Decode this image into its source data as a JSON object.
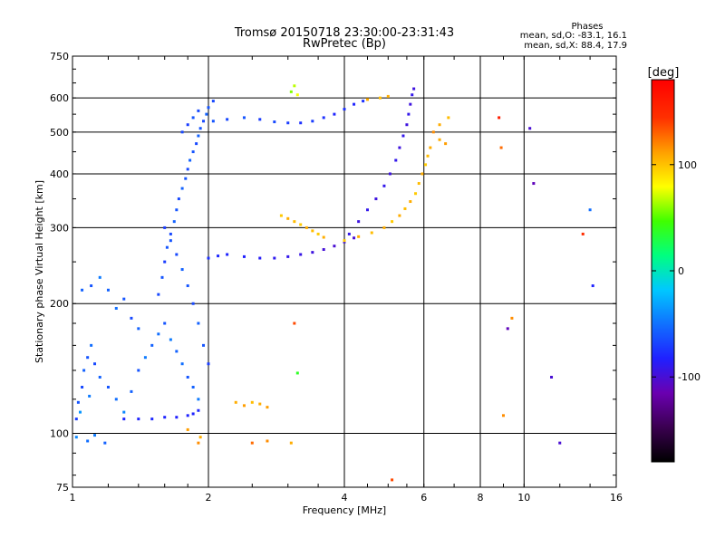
{
  "header": {
    "title_line1": "Tromsø 20150718 23:30:00-23:31:43",
    "title_line2": "RwPretec (Bp)"
  },
  "stats": {
    "title": "Phases",
    "line_o": "mean, sd,O: -83.1, 16.1",
    "line_x": "mean, sd,X:  88.4, 17.9"
  },
  "chart_data": {
    "type": "scatter",
    "xlabel": "Frequency [MHz]",
    "ylabel": "Stationary phase Virtual Height [km]",
    "x_scale": "log",
    "y_scale": "log",
    "xlim": [
      1,
      16
    ],
    "ylim": [
      75,
      750
    ],
    "x_ticks": [
      1,
      2,
      4,
      6,
      8,
      10,
      16
    ],
    "x_major_gridlines": [
      2,
      4,
      6,
      8,
      10
    ],
    "y_ticks": [
      75,
      100,
      200,
      300,
      400,
      500,
      600,
      750
    ],
    "y_major_gridlines": [
      100,
      200,
      300,
      400,
      500,
      600
    ],
    "grid": true,
    "colorbar": {
      "label": "[deg]",
      "range": [
        -180,
        180
      ],
      "ticks": [
        100,
        0,
        -100
      ],
      "colormap": [
        "#000000",
        "#3a0050",
        "#6a00b0",
        "#2020ff",
        "#1070ff",
        "#00c8ff",
        "#00ff80",
        "#40ff00",
        "#ffff00",
        "#ffa000",
        "#ff3000",
        "#ff0000"
      ]
    },
    "series": [
      {
        "points": [
          [
            1.02,
            108,
            -70
          ],
          [
            1.03,
            118,
            -60
          ],
          [
            1.05,
            128,
            -65
          ],
          [
            1.06,
            140,
            -55
          ],
          [
            1.08,
            150,
            -60
          ],
          [
            1.1,
            160,
            -50
          ],
          [
            1.12,
            145,
            -65
          ],
          [
            1.15,
            135,
            -55
          ],
          [
            1.2,
            128,
            -60
          ],
          [
            1.25,
            120,
            -50
          ],
          [
            1.3,
            112,
            -40
          ],
          [
            1.35,
            125,
            -55
          ],
          [
            1.4,
            140,
            -60
          ],
          [
            1.45,
            150,
            -45
          ],
          [
            1.5,
            160,
            -55
          ],
          [
            1.55,
            170,
            -50
          ],
          [
            1.6,
            180,
            -60
          ],
          [
            1.65,
            165,
            -45
          ],
          [
            1.7,
            155,
            -55
          ],
          [
            1.75,
            145,
            -50
          ],
          [
            1.8,
            135,
            -60
          ],
          [
            1.85,
            128,
            -55
          ],
          [
            1.9,
            120,
            -45
          ],
          [
            1.05,
            215,
            -55
          ],
          [
            1.1,
            220,
            -60
          ],
          [
            1.15,
            230,
            -45
          ],
          [
            1.2,
            215,
            -55
          ],
          [
            1.3,
            205,
            -60
          ],
          [
            1.25,
            195,
            -50
          ],
          [
            1.35,
            185,
            -65
          ],
          [
            1.4,
            175,
            -55
          ],
          [
            1.02,
            98,
            -40
          ],
          [
            1.08,
            96,
            -50
          ],
          [
            1.12,
            99,
            -45
          ],
          [
            1.18,
            95,
            -55
          ],
          [
            1.04,
            112,
            -35
          ],
          [
            1.09,
            122,
            -45
          ]
        ]
      },
      {
        "points": [
          [
            1.3,
            108,
            -80
          ],
          [
            1.4,
            108,
            -80
          ],
          [
            1.5,
            108,
            -78
          ],
          [
            1.6,
            109,
            -80
          ],
          [
            1.7,
            109,
            -82
          ],
          [
            1.8,
            110,
            -80
          ],
          [
            1.85,
            111,
            -80
          ],
          [
            1.9,
            113,
            -78
          ]
        ]
      },
      {
        "points": [
          [
            1.55,
            210,
            -65
          ],
          [
            1.58,
            230,
            -60
          ],
          [
            1.6,
            250,
            -70
          ],
          [
            1.62,
            270,
            -60
          ],
          [
            1.65,
            290,
            -65
          ],
          [
            1.68,
            310,
            -55
          ],
          [
            1.7,
            330,
            -60
          ],
          [
            1.72,
            350,
            -65
          ],
          [
            1.75,
            370,
            -55
          ],
          [
            1.78,
            390,
            -60
          ],
          [
            1.8,
            410,
            -65
          ],
          [
            1.82,
            430,
            -55
          ],
          [
            1.85,
            450,
            -60
          ],
          [
            1.88,
            470,
            -65
          ],
          [
            1.9,
            490,
            -55
          ],
          [
            1.92,
            510,
            -60
          ],
          [
            1.95,
            530,
            -65
          ],
          [
            1.98,
            550,
            -55
          ],
          [
            2.0,
            570,
            -60
          ],
          [
            2.05,
            590,
            -65
          ],
          [
            1.6,
            300,
            -70
          ],
          [
            1.65,
            280,
            -60
          ],
          [
            1.7,
            260,
            -65
          ],
          [
            1.75,
            240,
            -55
          ],
          [
            1.8,
            220,
            -60
          ],
          [
            1.85,
            200,
            -65
          ],
          [
            1.9,
            180,
            -55
          ],
          [
            1.95,
            160,
            -60
          ],
          [
            2.0,
            145,
            -70
          ],
          [
            1.75,
            500,
            -65
          ],
          [
            1.8,
            520,
            -70
          ],
          [
            1.85,
            540,
            -60
          ],
          [
            1.9,
            560,
            -65
          ]
        ]
      },
      {
        "points": [
          [
            2.0,
            255,
            -75
          ],
          [
            2.1,
            258,
            -78
          ],
          [
            2.2,
            260,
            -80
          ],
          [
            2.4,
            257,
            -82
          ],
          [
            2.6,
            255,
            -85
          ],
          [
            2.8,
            255,
            -88
          ],
          [
            3.0,
            257,
            -90
          ],
          [
            3.2,
            260,
            -92
          ],
          [
            3.4,
            263,
            -95
          ],
          [
            3.6,
            267,
            -98
          ],
          [
            3.8,
            272,
            -100
          ],
          [
            4.0,
            278,
            -95
          ],
          [
            4.2,
            284,
            -100
          ]
        ]
      },
      {
        "points": [
          [
            4.0,
            280,
            100
          ],
          [
            4.3,
            286,
            110
          ],
          [
            4.6,
            292,
            105
          ],
          [
            4.9,
            300,
            110
          ],
          [
            5.1,
            310,
            100
          ],
          [
            5.3,
            320,
            110
          ],
          [
            5.45,
            332,
            105
          ],
          [
            5.6,
            345,
            110
          ],
          [
            5.75,
            360,
            100
          ],
          [
            5.85,
            380,
            105
          ],
          [
            5.95,
            400,
            110
          ],
          [
            6.05,
            420,
            100
          ],
          [
            6.12,
            440,
            105
          ],
          [
            6.2,
            460,
            110
          ],
          [
            2.9,
            320,
            100
          ],
          [
            3.0,
            315,
            110
          ],
          [
            3.1,
            310,
            105
          ],
          [
            3.2,
            305,
            100
          ],
          [
            3.3,
            300,
            110
          ],
          [
            3.4,
            295,
            105
          ],
          [
            3.5,
            290,
            100
          ],
          [
            3.6,
            285,
            110
          ]
        ]
      },
      {
        "points": [
          [
            4.1,
            290,
            -90
          ],
          [
            4.3,
            310,
            -95
          ],
          [
            4.5,
            330,
            -90
          ],
          [
            4.7,
            350,
            -95
          ],
          [
            4.9,
            375,
            -90
          ],
          [
            5.05,
            400,
            -95
          ],
          [
            5.2,
            430,
            -90
          ],
          [
            5.3,
            460,
            -95
          ],
          [
            5.4,
            490,
            -90
          ],
          [
            5.5,
            520,
            -95
          ],
          [
            5.55,
            550,
            -90
          ],
          [
            5.6,
            580,
            -95
          ],
          [
            5.65,
            610,
            -90
          ],
          [
            5.7,
            630,
            -95
          ]
        ]
      },
      {
        "points": [
          [
            2.05,
            530,
            -60
          ],
          [
            2.2,
            535,
            -65
          ],
          [
            2.4,
            540,
            -60
          ],
          [
            2.6,
            535,
            -70
          ],
          [
            2.8,
            528,
            -65
          ],
          [
            3.0,
            525,
            -70
          ],
          [
            3.2,
            525,
            -75
          ],
          [
            3.4,
            530,
            -70
          ],
          [
            3.6,
            540,
            -75
          ],
          [
            3.8,
            550,
            -80
          ],
          [
            4.0,
            565,
            -75
          ],
          [
            4.2,
            580,
            -80
          ],
          [
            4.4,
            590,
            -75
          ]
        ]
      },
      {
        "points": [
          [
            4.5,
            595,
            110
          ],
          [
            4.8,
            600,
            105
          ],
          [
            5.0,
            605,
            110
          ],
          [
            3.05,
            620,
            60
          ],
          [
            3.1,
            640,
            70
          ],
          [
            3.15,
            610,
            80
          ],
          [
            6.3,
            500,
            120
          ],
          [
            6.5,
            480,
            110
          ],
          [
            6.7,
            470,
            115
          ],
          [
            6.5,
            520,
            110
          ],
          [
            6.8,
            540,
            105
          ]
        ]
      },
      {
        "points": [
          [
            2.3,
            118,
            110
          ],
          [
            2.4,
            116,
            115
          ],
          [
            2.5,
            118,
            105
          ],
          [
            2.6,
            117,
            110
          ],
          [
            2.7,
            115,
            115
          ],
          [
            1.9,
            95,
            120
          ],
          [
            1.92,
            98,
            110
          ],
          [
            2.5,
            95,
            130
          ],
          [
            2.7,
            96,
            120
          ],
          [
            3.05,
            95,
            110
          ],
          [
            1.8,
            102,
            115
          ]
        ]
      },
      {
        "points": [
          [
            8.8,
            540,
            160
          ],
          [
            8.9,
            460,
            130
          ],
          [
            9.0,
            110,
            120
          ],
          [
            9.2,
            175,
            -110
          ],
          [
            9.4,
            185,
            120
          ],
          [
            12.0,
            95,
            -100
          ],
          [
            11.5,
            135,
            -100
          ],
          [
            13.5,
            290,
            150
          ],
          [
            14.0,
            330,
            -50
          ],
          [
            10.5,
            380,
            -110
          ],
          [
            10.3,
            510,
            -100
          ],
          [
            14.2,
            220,
            -80
          ],
          [
            5.1,
            78,
            140
          ],
          [
            3.1,
            180,
            140
          ],
          [
            3.15,
            138,
            40
          ]
        ]
      }
    ]
  }
}
